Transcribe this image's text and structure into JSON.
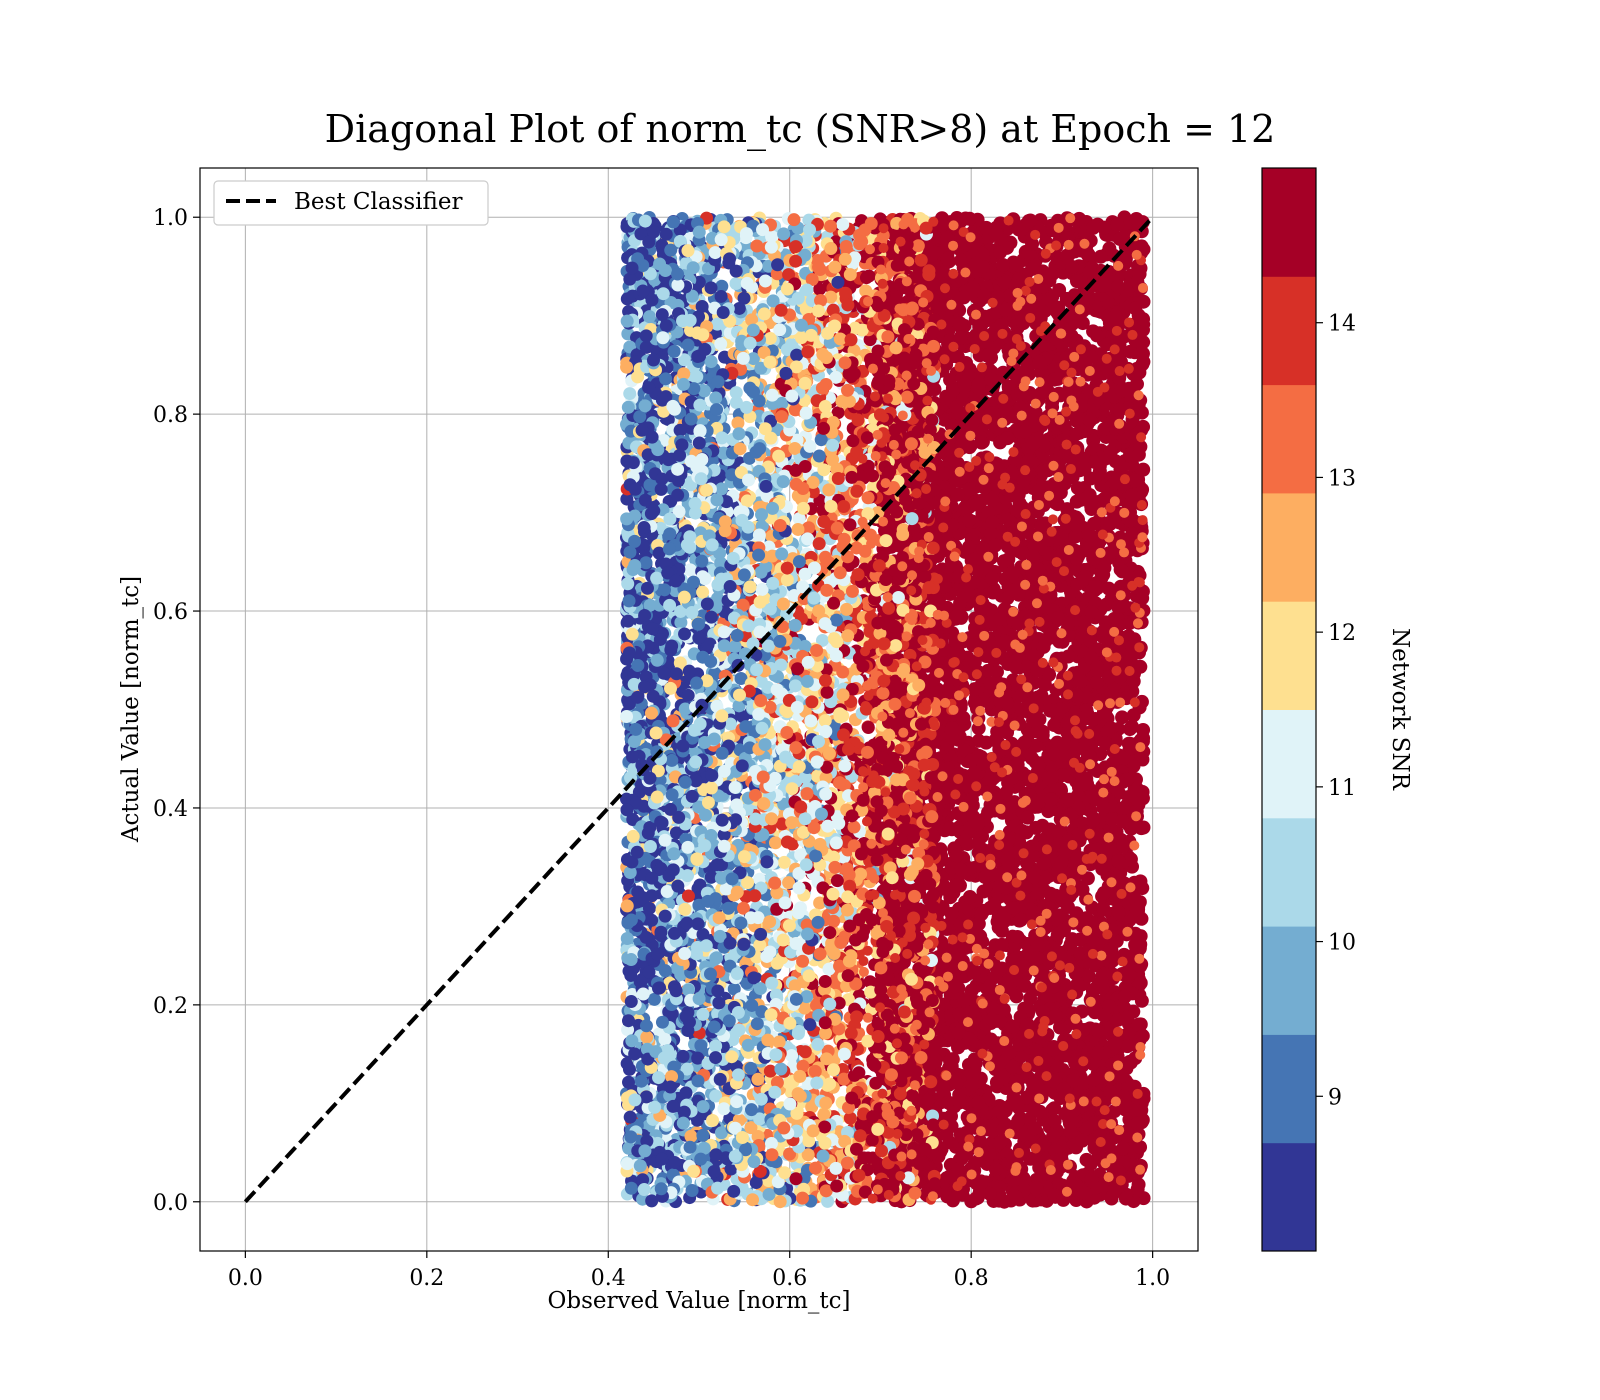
{
  "chart_data": {
    "type": "scatter",
    "title": "Diagonal Plot of norm_tc (SNR>8) at Epoch = 12",
    "xlabel": "Observed Value [norm_tc]",
    "ylabel": "Actual Value [norm_tc]",
    "xlim": [
      -0.05,
      1.05
    ],
    "ylim": [
      -0.05,
      1.05
    ],
    "x_ticks": [
      "0.0",
      "0.2",
      "0.4",
      "0.6",
      "0.8",
      "1.0"
    ],
    "y_ticks": [
      "0.0",
      "0.2",
      "0.4",
      "0.6",
      "0.8",
      "1.0"
    ],
    "grid": true,
    "legend": {
      "position": "top-left",
      "entries": [
        "Best Classifier"
      ]
    },
    "reference_line": {
      "label": "Best Classifier",
      "x": [
        0,
        1
      ],
      "y": [
        0,
        1
      ],
      "style": "dashed",
      "color": "#000000"
    },
    "scatter_extent": {
      "x_range": [
        0.42,
        0.99
      ],
      "y_range": [
        0.0,
        1.0
      ]
    },
    "snr_profile_by_observed_x": [
      {
        "x": 0.45,
        "snr": 9.0
      },
      {
        "x": 0.5,
        "snr": 9.6
      },
      {
        "x": 0.55,
        "snr": 10.4
      },
      {
        "x": 0.6,
        "snr": 11.4
      },
      {
        "x": 0.65,
        "snr": 12.7
      },
      {
        "x": 0.7,
        "snr": 14.3
      },
      {
        "x": 0.8,
        "snr": 15.0
      },
      {
        "x": 0.99,
        "snr": 15.0
      }
    ],
    "colorbar": {
      "label": "Network SNR",
      "range": [
        8,
        15
      ],
      "ticks": [
        "9",
        "10",
        "11",
        "12",
        "13",
        "14"
      ],
      "colors": [
        "#313695",
        "#4575b4",
        "#74add1",
        "#abd9e9",
        "#e0f3f8",
        "#fee090",
        "#fdae61",
        "#f46d43",
        "#d73027",
        "#a50026"
      ]
    }
  }
}
